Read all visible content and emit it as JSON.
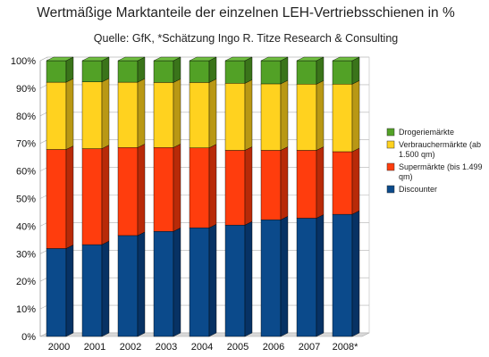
{
  "chart_data": {
    "type": "bar",
    "stacked": true,
    "three_d": true,
    "title": "Wertmäßige Marktanteile der einzelnen LEH-Vertriebsschienen in %",
    "subtitle": "Quelle: GfK, *Schätzung Ingo R. Titze Research & Consulting",
    "xlabel": "",
    "ylabel": "",
    "ylim": [
      0,
      100
    ],
    "y_ticks": [
      "0%",
      "10%",
      "20%",
      "30%",
      "40%",
      "50%",
      "60%",
      "70%",
      "80%",
      "90%",
      "100%"
    ],
    "categories": [
      "2000",
      "2001",
      "2002",
      "2003",
      "2004",
      "2005",
      "2006",
      "2007",
      "2008*"
    ],
    "series": [
      {
        "name": "Discounter",
        "color": "#0b4a8b",
        "side_color": "#073264",
        "values": [
          31.9,
          33.3,
          36.6,
          38.1,
          39.4,
          40.4,
          42.3,
          42.9,
          44.3
        ]
      },
      {
        "name": "Supermärkte (bis 1.499 qm)",
        "color": "#ff3d0d",
        "side_color": "#b82a08",
        "values": [
          35.9,
          34.8,
          31.9,
          30.4,
          29.0,
          27.1,
          25.2,
          24.6,
          22.7
        ]
      },
      {
        "name": "Verbrauchermärkte (ab 1.500 qm)",
        "color": "#ffd21f",
        "side_color": "#b99814",
        "values": [
          24.4,
          24.2,
          23.7,
          23.6,
          23.7,
          24.3,
          24.1,
          24.0,
          24.5
        ]
      },
      {
        "name": "Drogeriemärkte",
        "color": "#52a126",
        "side_color": "#3a741a",
        "values": [
          7.8,
          7.7,
          7.8,
          7.9,
          7.9,
          8.2,
          8.4,
          8.5,
          8.5
        ]
      }
    ],
    "legend": {
      "placement": "right",
      "entries": [
        {
          "lines": [
            "Drogeriemärkte"
          ],
          "color": "#52a126"
        },
        {
          "lines": [
            "Verbrauchermärkte (ab",
            "1.500 qm)"
          ],
          "color": "#ffd21f"
        },
        {
          "lines": [
            "Supermärkte (bis 1.499",
            "qm)"
          ],
          "color": "#ff3d0d"
        },
        {
          "lines": [
            "Discounter"
          ],
          "color": "#0b4a8b"
        }
      ]
    },
    "grid": true
  }
}
